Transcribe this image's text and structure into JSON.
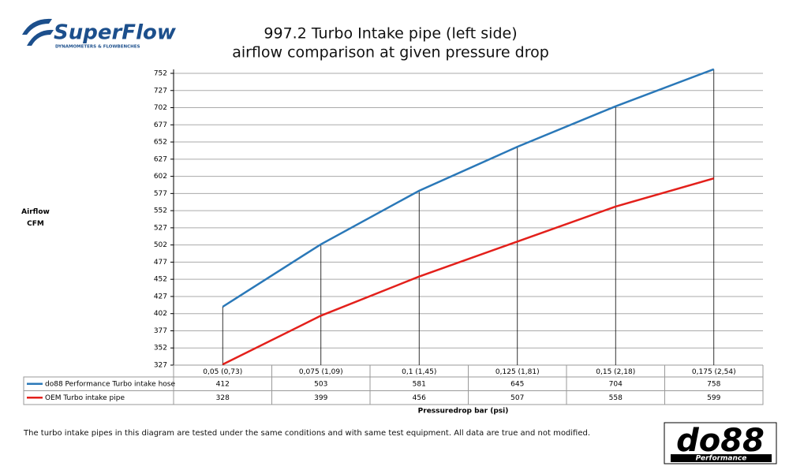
{
  "chart_data": {
    "type": "line",
    "title": "997.2 Turbo Intake pipe (left side)",
    "subtitle": "airflow comparison at given pressure drop",
    "y_label": "Airflow CFM",
    "x_label": "Pressuredrop bar (psi)",
    "categories": [
      "0,05 (0,73)",
      "0,075 (1,09)",
      "0,1 (1,45)",
      "0,125 (1,81)",
      "0,15 (2,18)",
      "0,175 (2,54)"
    ],
    "series": [
      {
        "name": "do88 Performance Turbo intake hose",
        "color": "#2a78b8",
        "values": [
          412,
          503,
          581,
          645,
          704,
          758
        ]
      },
      {
        "name": "OEM Turbo intake pipe",
        "color": "#e3201b",
        "values": [
          328,
          399,
          456,
          507,
          558,
          599
        ]
      }
    ],
    "ylim": [
      327,
      752
    ],
    "yticks": [
      327,
      352,
      377,
      402,
      427,
      452,
      477,
      502,
      527,
      552,
      577,
      602,
      627,
      652,
      677,
      702,
      727,
      752
    ],
    "grid": true,
    "drop_lines": true
  },
  "footnote": "The turbo intake pipes in this diagram are tested under the same conditions and with same test equipment. All data are true and not modified.",
  "branding": {
    "superflow": "SuperFlow",
    "superflow_tagline": "DYNAMOMETERS & FLOWBENCHES",
    "do88": "do88",
    "do88_tagline": "Performance"
  }
}
